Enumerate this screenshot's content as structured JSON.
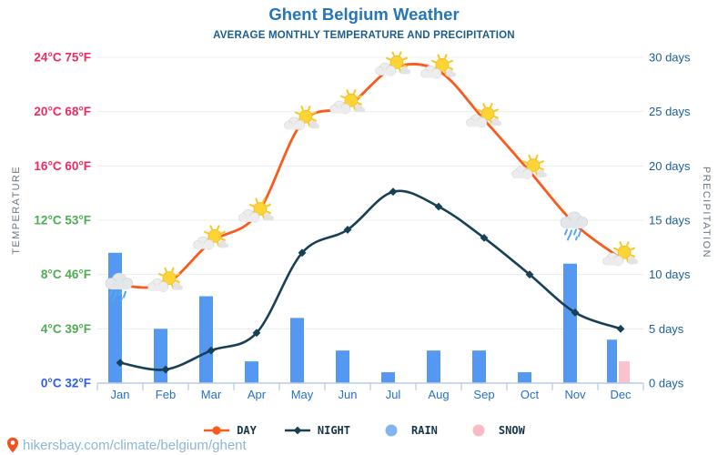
{
  "header": {
    "title": "Ghent Belgium Weather",
    "subtitle": "AVERAGE MONTHLY TEMPERATURE AND PRECIPITATION"
  },
  "watermark": {
    "text": "hikersbay.com/climate/belgium/ghent"
  },
  "axes": {
    "left_title": "TEMPERATURE",
    "right_title": "PRECIPITATION",
    "temp_ticks": [
      {
        "label": "0°C 32°F",
        "c": 0,
        "color": "#2f5fe0"
      },
      {
        "label": "4°C 39°F",
        "c": 4,
        "color": "#4cae51"
      },
      {
        "label": "8°C 46°F",
        "c": 8,
        "color": "#4cae51"
      },
      {
        "label": "12°C 53°F",
        "c": 12,
        "color": "#4cae51"
      },
      {
        "label": "16°C 60°F",
        "c": 16,
        "color": "#f2295f"
      },
      {
        "label": "20°C 68°F",
        "c": 20,
        "color": "#f2295f"
      },
      {
        "label": "24°C 75°F",
        "c": 24,
        "color": "#f2295f"
      }
    ],
    "days_ticks": [
      {
        "label": "0 days",
        "d": 0
      },
      {
        "label": "5 days",
        "d": 5
      },
      {
        "label": "10 days",
        "d": 10
      },
      {
        "label": "15 days",
        "d": 15
      },
      {
        "label": "20 days",
        "d": 20
      },
      {
        "label": "25 days",
        "d": 25
      },
      {
        "label": "30 days",
        "d": 30
      }
    ],
    "right_tick_color": "#1a5f9e",
    "month_label_color": "#2470cc"
  },
  "legend": [
    {
      "label": "DAY",
      "marker": "line-dot",
      "color": "#fb5a1c"
    },
    {
      "label": "NIGHT",
      "marker": "line-diamond",
      "color": "#173f55"
    },
    {
      "label": "RAIN",
      "marker": "dot",
      "color": "#82b4ee"
    },
    {
      "label": "SNOW",
      "marker": "dot",
      "color": "#f9bac6"
    }
  ],
  "chart_data": {
    "type": "line+bar",
    "title": "Ghent Belgium Weather",
    "subtitle": "AVERAGE MONTHLY TEMPERATURE AND PRECIPITATION",
    "categories": [
      "Jan",
      "Feb",
      "Mar",
      "Apr",
      "May",
      "Jun",
      "Jul",
      "Aug",
      "Sep",
      "Oct",
      "Nov",
      "Dec"
    ],
    "series": [
      {
        "name": "DAY",
        "kind": "line",
        "unit": "°C",
        "color": "#fb5a1c",
        "values": [
          7.2,
          7.3,
          10.4,
          12.4,
          19.2,
          20.4,
          23.2,
          23.0,
          19.4,
          15.6,
          11.7,
          9.2
        ]
      },
      {
        "name": "NIGHT",
        "kind": "line",
        "unit": "°C",
        "color": "#173f55",
        "values": [
          1.5,
          1.0,
          2.4,
          3.7,
          9.6,
          11.3,
          14.1,
          13.0,
          10.7,
          8.0,
          5.2,
          4.0
        ]
      },
      {
        "name": "RAIN",
        "kind": "bar",
        "unit": "days",
        "color": "#5598f2",
        "values": [
          12,
          5,
          8,
          2,
          6,
          3,
          1,
          3,
          3,
          1,
          11,
          4
        ]
      },
      {
        "name": "SNOW",
        "kind": "bar",
        "unit": "days",
        "color": "#f9c2cc",
        "values": [
          0,
          0,
          0,
          0,
          0,
          0,
          0,
          0,
          0,
          0,
          0,
          2
        ]
      }
    ],
    "month_icons": [
      "rain",
      "partly-sunny",
      "partly-sunny",
      "partly-sunny",
      "partly-sunny",
      "partly-sunny",
      "partly-sunny",
      "partly-sunny",
      "partly-sunny",
      "partly-sunny",
      "rain",
      "partly-sunny"
    ],
    "temp_axis": {
      "min": 0,
      "max": 24,
      "step": 4,
      "unit": "°C"
    },
    "days_axis": {
      "min": 0,
      "max": 30,
      "step": 5,
      "unit": "days"
    },
    "grid": "horizontal",
    "legend_position": "bottom"
  }
}
